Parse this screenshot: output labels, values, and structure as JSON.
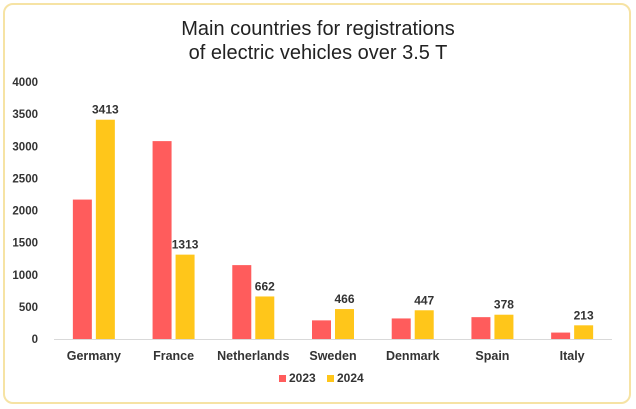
{
  "chart_data": {
    "type": "bar",
    "title": "Main countries for registrations of electric vehicles over 3.5 T",
    "title_lines": [
      "Main countries for registrations",
      "of electric vehicles over 3.5 T"
    ],
    "categories": [
      "Germany",
      "France",
      "Netherlands",
      "Sweden",
      "Denmark",
      "Spain",
      "Italy"
    ],
    "series": [
      {
        "name": "2023",
        "color": "#ff5c5c",
        "values": [
          2170,
          3080,
          1150,
          290,
          320,
          340,
          100
        ],
        "show_labels": false
      },
      {
        "name": "2024",
        "color": "#ffc61a",
        "values": [
          3413,
          1313,
          662,
          466,
          447,
          378,
          213
        ],
        "show_labels": true
      }
    ],
    "ylim": [
      0,
      4000
    ],
    "yticks": [
      0,
      500,
      1000,
      1500,
      2000,
      2500,
      3000,
      3500,
      4000
    ],
    "xlabel": "",
    "ylabel": "",
    "grid": false,
    "legend": "bottom-center"
  }
}
